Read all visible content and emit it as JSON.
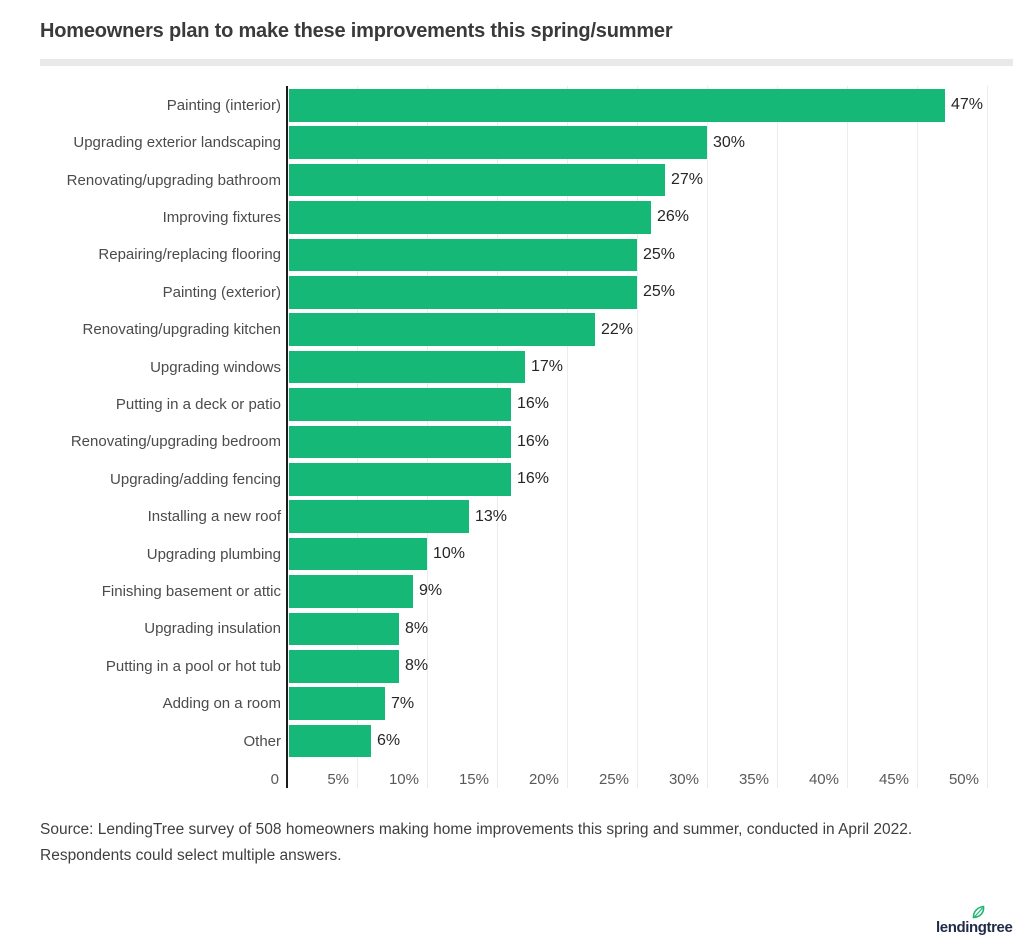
{
  "title": "Homeowners plan to make these improvements this spring/summer",
  "chart_data": {
    "type": "bar",
    "orientation": "horizontal",
    "title": "Homeowners plan to make these improvements this spring/summer",
    "categories": [
      "Painting (interior)",
      "Upgrading exterior landscaping",
      "Renovating/upgrading bathroom",
      "Improving fixtures",
      "Repairing/replacing flooring",
      "Painting (exterior)",
      "Renovating/upgrading kitchen",
      "Upgrading windows",
      "Putting in a deck or patio",
      "Renovating/upgrading bedroom",
      "Upgrading/adding fencing",
      "Installing a new roof",
      "Upgrading plumbing",
      "Finishing basement or attic",
      "Upgrading insulation",
      "Putting in a pool or hot tub",
      "Adding on a room",
      "Other"
    ],
    "values": [
      47,
      30,
      27,
      26,
      25,
      25,
      22,
      17,
      16,
      16,
      16,
      13,
      10,
      9,
      8,
      8,
      7,
      6
    ],
    "value_labels": [
      "47%",
      "30%",
      "27%",
      "26%",
      "25%",
      "25%",
      "22%",
      "17%",
      "16%",
      "16%",
      "16%",
      "13%",
      "10%",
      "9%",
      "8%",
      "8%",
      "7%",
      "6%"
    ],
    "xlabel": "",
    "ylabel": "",
    "xlim": [
      0,
      50
    ],
    "x_ticks": [
      "0",
      "5%",
      "10%",
      "15%",
      "20%",
      "25%",
      "30%",
      "35%",
      "40%",
      "45%",
      "50%"
    ],
    "x_tick_values": [
      0,
      5,
      10,
      15,
      20,
      25,
      30,
      35,
      40,
      45,
      50
    ],
    "grid": "vertical",
    "legend": "none",
    "bar_color": "#16b877"
  },
  "colors": {
    "bar": "#16b877",
    "axis_line": "#1b1b1b",
    "gridline": "#ececec",
    "title_text": "#3a3a3a",
    "category_text": "#4b4b4b",
    "value_text": "#262626",
    "tick_text": "#595959",
    "divider": "#e9e9e9",
    "logo_text": "#1f2b49",
    "logo_leaf": "#21b573"
  },
  "source": {
    "line1": "Source: LendingTree survey of 508 homeowners making home improvements this spring and summer, conducted in April 2022.",
    "line2": "Respondents could select multiple answers."
  },
  "logo": {
    "text": "lendingtree"
  }
}
